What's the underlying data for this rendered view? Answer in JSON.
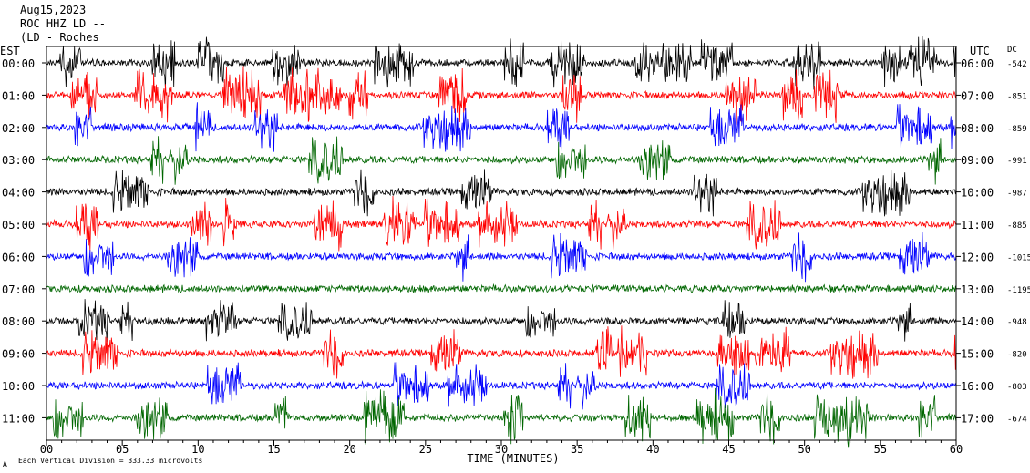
{
  "header": {
    "date": "Aug15,2023",
    "station": "ROC HHZ LD --",
    "location": "(LD - Roches"
  },
  "chart_data": {
    "type": "line",
    "left_axis_label": "EST",
    "right_axis_label": "UTC",
    "dc_label": "DC",
    "xlabel": "TIME (MINUTES)",
    "xlim": [
      0,
      60
    ],
    "x_ticks": [
      "00",
      "05",
      "10",
      "15",
      "20",
      "25",
      "30",
      "35",
      "40",
      "45",
      "50",
      "55",
      "60"
    ],
    "footnote": "Each Vertical Division = 333.33 microvolts",
    "footnote_mark": "A",
    "trace_colors": [
      "#000000",
      "#ff0000",
      "#0000ff",
      "#006600"
    ],
    "traces": [
      {
        "est": "00:00",
        "utc": "06:00",
        "dc": "-542",
        "color": "#000000",
        "activity": 0.8
      },
      {
        "est": "01:00",
        "utc": "07:00",
        "dc": "-851",
        "color": "#ff0000",
        "activity": 0.85
      },
      {
        "est": "02:00",
        "utc": "08:00",
        "dc": "-859",
        "color": "#0000ff",
        "activity": 0.75
      },
      {
        "est": "03:00",
        "utc": "09:00",
        "dc": "-991",
        "color": "#006600",
        "activity": 0.8
      },
      {
        "est": "04:00",
        "utc": "10:00",
        "dc": "-987",
        "color": "#000000",
        "activity": 0.75
      },
      {
        "est": "05:00",
        "utc": "11:00",
        "dc": "-885",
        "color": "#ff0000",
        "activity": 0.85
      },
      {
        "est": "06:00",
        "utc": "12:00",
        "dc": "-1015",
        "color": "#0000ff",
        "activity": 0.8
      },
      {
        "est": "07:00",
        "utc": "13:00",
        "dc": "-1195",
        "color": "#006600",
        "activity": 0.05
      },
      {
        "est": "08:00",
        "utc": "14:00",
        "dc": "-948",
        "color": "#000000",
        "activity": 0.6
      },
      {
        "est": "09:00",
        "utc": "15:00",
        "dc": "-820",
        "color": "#ff0000",
        "activity": 0.8
      },
      {
        "est": "10:00",
        "utc": "16:00",
        "dc": "-803",
        "color": "#0000ff",
        "activity": 0.75
      },
      {
        "est": "11:00",
        "utc": "17:00",
        "dc": "-674",
        "color": "#006600",
        "activity": 0.85
      }
    ]
  }
}
